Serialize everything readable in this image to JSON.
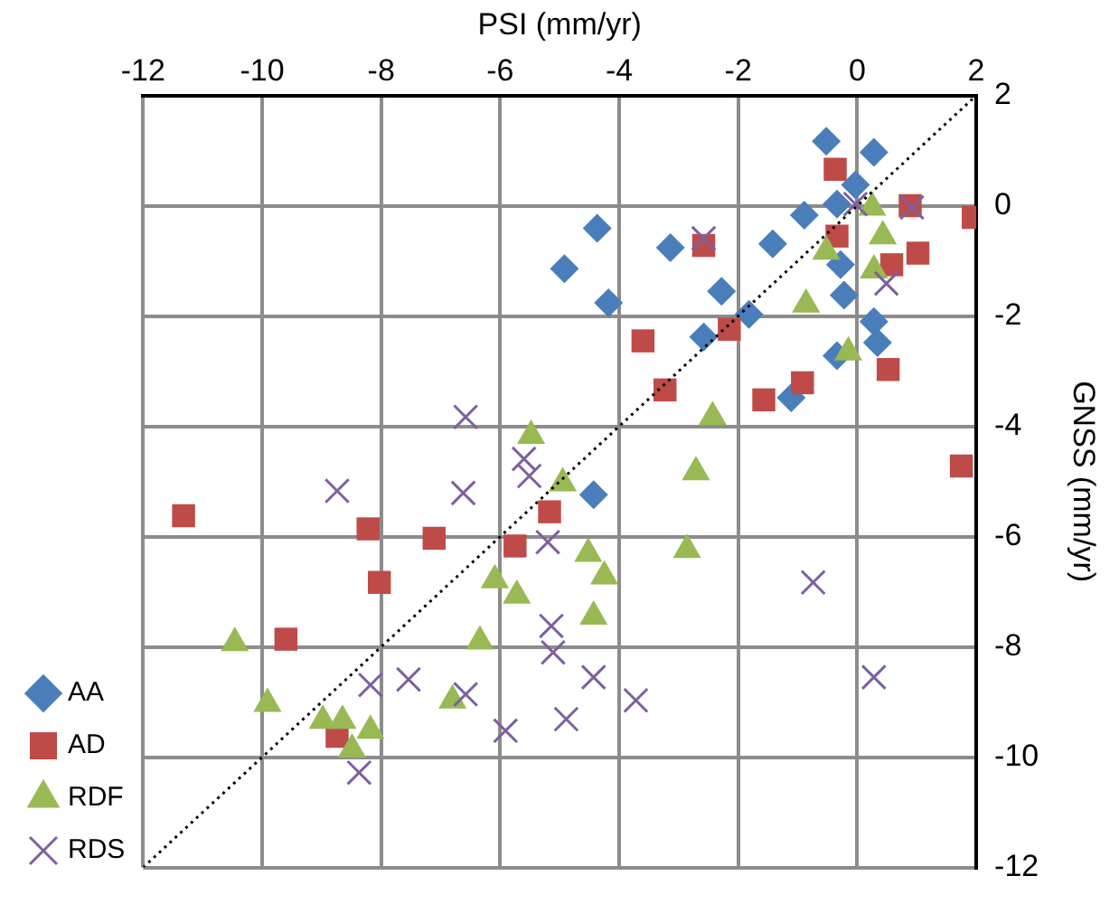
{
  "chart_data": {
    "type": "scatter",
    "xlabel": "PSI (mm/yr)",
    "ylabel": "GNSS (mm/yr)",
    "xlim": [
      -12,
      2
    ],
    "xticks": [
      -12,
      -10,
      -8,
      -6,
      -4,
      -2,
      0,
      2
    ],
    "ylim": [
      -12,
      2
    ],
    "yticks": [
      -12,
      -10,
      -8,
      -6,
      -4,
      -2,
      0,
      2
    ],
    "grid": true,
    "legend": "bottom left",
    "series": [
      {
        "name": "AA",
        "color": "#4a7ebb",
        "marker": "diamond",
        "x": [
          -0.52,
          0.28,
          -4.37,
          -4.92,
          -4.18,
          -3.14,
          -2.28,
          -1.82,
          -2.58,
          -1.42,
          -0.89,
          -0.34,
          -0.03,
          -0.28,
          -0.22,
          0.28,
          0.34,
          -0.34,
          -1.11,
          -4.43
        ],
        "values": [
          1.17,
          0.97,
          -0.41,
          -1.14,
          -1.76,
          -0.76,
          -1.55,
          -1.97,
          -2.38,
          -0.69,
          -0.17,
          0.03,
          0.38,
          -1.07,
          -1.62,
          -2.1,
          -2.48,
          -2.72,
          -3.48,
          -5.24
        ]
      },
      {
        "name": "AD",
        "color": "#be4b48",
        "marker": "square",
        "x": [
          -0.37,
          -0.34,
          -2.58,
          0.89,
          1.95,
          1.02,
          0.58,
          -2.15,
          -3.6,
          -3.23,
          -1.57,
          -0.92,
          0.52,
          1.75,
          -11.32,
          -8.22,
          -7.11,
          -8.03,
          -9.6,
          -8.74,
          -5.75,
          -5.17
        ],
        "values": [
          0.66,
          -0.55,
          -0.72,
          0.0,
          -0.21,
          -0.86,
          -1.07,
          -2.24,
          -2.45,
          -3.34,
          -3.52,
          -3.21,
          -2.97,
          -4.72,
          -5.62,
          -5.86,
          -6.03,
          -6.83,
          -7.86,
          -9.62,
          -6.17,
          -5.55
        ]
      },
      {
        "name": "RDF",
        "color": "#98b954",
        "marker": "triangle",
        "x": [
          0.25,
          0.43,
          -0.52,
          0.28,
          -0.86,
          -0.15,
          -2.43,
          -2.71,
          -5.48,
          -4.95,
          -2.86,
          -4.52,
          -4.25,
          -4.43,
          -6.09,
          -5.72,
          -6.34,
          -6.8,
          -10.46,
          -9.91,
          -8.98,
          -8.65,
          -8.18,
          -8.49
        ],
        "values": [
          -0.03,
          -0.55,
          -0.83,
          -1.17,
          -1.79,
          -2.66,
          -3.83,
          -4.83,
          -4.17,
          -5.03,
          -6.24,
          -6.31,
          -6.72,
          -7.45,
          -6.79,
          -7.07,
          -7.9,
          -8.97,
          -7.93,
          -9.03,
          -9.34,
          -9.34,
          -9.52,
          -9.86
        ]
      },
      {
        "name": "RDS",
        "color": "#7d60a0",
        "marker": "cross",
        "x": [
          -2.58,
          -0.03,
          0.92,
          0.49,
          -6.58,
          -5.6,
          -5.51,
          -8.74,
          -6.62,
          -5.2,
          -5.14,
          -5.11,
          -8.18,
          -7.54,
          -6.58,
          -5.91,
          -8.37,
          -0.74,
          -4.43,
          -4.89,
          -3.72,
          0.28
        ],
        "values": [
          -0.59,
          0.03,
          -0.03,
          -1.41,
          -3.83,
          -4.59,
          -4.9,
          -5.17,
          -5.21,
          -6.1,
          -7.62,
          -8.1,
          -8.69,
          -8.59,
          -8.86,
          -9.52,
          -10.28,
          -6.83,
          -8.55,
          -9.31,
          -8.97,
          -8.55
        ]
      },
      {
        "type": "line",
        "color": "#000000",
        "marker": "none",
        "line_style": "dotted",
        "x": [
          -12,
          2
        ],
        "values": [
          -12,
          2
        ]
      }
    ]
  }
}
